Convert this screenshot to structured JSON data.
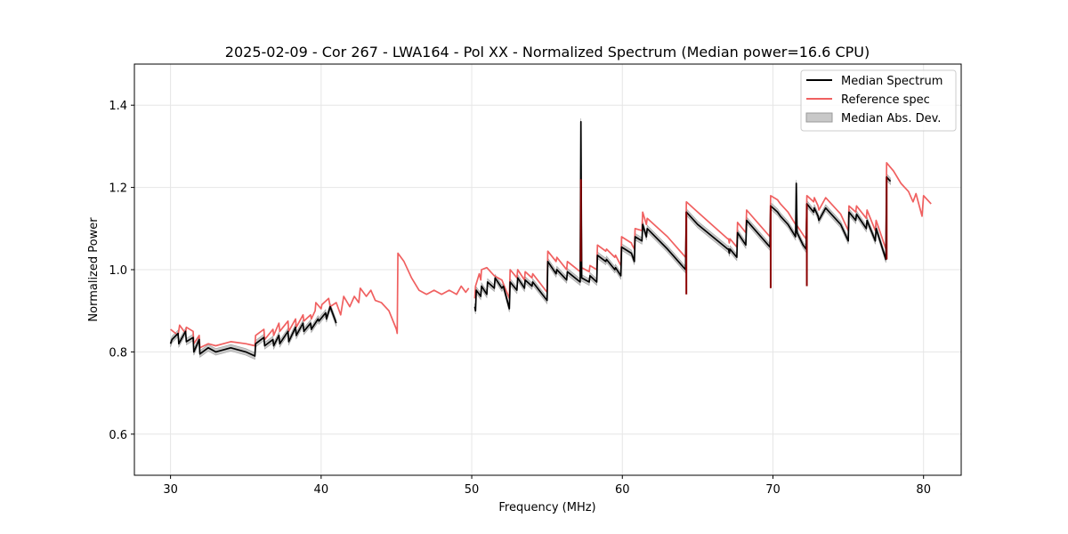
{
  "chart_data": {
    "type": "line",
    "title": "2025-02-09 - Cor 267 - LWA164 - Pol XX - Normalized Spectrum (Median power=16.6 CPU)",
    "xlabel": "Frequency (MHz)",
    "ylabel": "Normalized Power",
    "xlim": [
      27.6,
      82.5
    ],
    "ylim": [
      0.5,
      1.5
    ],
    "xticks": [
      30,
      40,
      50,
      60,
      70,
      80
    ],
    "yticks": [
      0.6,
      0.8,
      1.0,
      1.2,
      1.4
    ],
    "grid": true,
    "legend_position": "top-right",
    "legend": [
      "Median Spectrum",
      "Reference spec",
      "Median Abs. Dev."
    ],
    "colors": {
      "median": "#000000",
      "reference": "#f06060",
      "mad": "#c8c8c8",
      "overlap": "#8b0000",
      "grid": "#e6e6e6"
    },
    "series": [
      {
        "name": "Median Spectrum",
        "segments": [
          [
            [
              30.0,
              0.82
            ],
            [
              30.1,
              0.83
            ],
            [
              30.5,
              0.845
            ],
            [
              30.55,
              0.82
            ],
            [
              31.0,
              0.85
            ],
            [
              31.05,
              0.825
            ],
            [
              31.5,
              0.835
            ],
            [
              31.55,
              0.8
            ],
            [
              31.9,
              0.83
            ],
            [
              31.95,
              0.795
            ],
            [
              32.5,
              0.81
            ],
            [
              33.0,
              0.8
            ],
            [
              34.0,
              0.81
            ],
            [
              35.0,
              0.8
            ],
            [
              35.6,
              0.79
            ],
            [
              35.65,
              0.82
            ],
            [
              36.2,
              0.835
            ],
            [
              36.25,
              0.815
            ],
            [
              36.8,
              0.83
            ],
            [
              36.85,
              0.815
            ],
            [
              37.2,
              0.84
            ],
            [
              37.25,
              0.82
            ],
            [
              37.8,
              0.85
            ],
            [
              37.85,
              0.825
            ],
            [
              38.3,
              0.86
            ],
            [
              38.35,
              0.84
            ],
            [
              38.8,
              0.87
            ],
            [
              38.85,
              0.85
            ],
            [
              39.3,
              0.87
            ],
            [
              39.35,
              0.855
            ],
            [
              39.8,
              0.88
            ],
            [
              39.85,
              0.875
            ],
            [
              40.3,
              0.895
            ],
            [
              40.35,
              0.88
            ],
            [
              40.6,
              0.91
            ],
            [
              41.0,
              0.87
            ]
          ],
          [
            [
              50.2,
              0.91
            ],
            [
              50.25,
              0.9
            ],
            [
              50.3,
              0.95
            ],
            [
              50.6,
              0.935
            ],
            [
              50.65,
              0.96
            ],
            [
              51.0,
              0.94
            ],
            [
              51.05,
              0.97
            ],
            [
              51.5,
              0.955
            ],
            [
              51.55,
              0.98
            ],
            [
              52.0,
              0.955
            ],
            [
              52.1,
              0.96
            ],
            [
              52.5,
              0.905
            ],
            [
              52.55,
              0.97
            ],
            [
              53.0,
              0.95
            ],
            [
              53.05,
              0.98
            ],
            [
              53.5,
              0.955
            ],
            [
              53.55,
              0.975
            ],
            [
              54.0,
              0.96
            ],
            [
              54.05,
              0.97
            ],
            [
              55.0,
              0.925
            ],
            [
              55.05,
              1.02
            ],
            [
              55.6,
              0.99
            ],
            [
              55.65,
              1.0
            ],
            [
              56.3,
              0.975
            ],
            [
              56.35,
              0.995
            ],
            [
              57.2,
              0.97
            ],
            [
              57.25,
              1.36
            ],
            [
              57.3,
              0.98
            ],
            [
              57.8,
              0.97
            ],
            [
              57.85,
              0.985
            ],
            [
              58.3,
              0.97
            ],
            [
              58.35,
              1.035
            ],
            [
              58.9,
              1.02
            ],
            [
              58.95,
              1.025
            ],
            [
              59.5,
              1.0
            ],
            [
              59.55,
              1.005
            ],
            [
              59.9,
              0.985
            ],
            [
              59.95,
              1.055
            ],
            [
              60.6,
              1.04
            ],
            [
              60.65,
              1.035
            ],
            [
              60.8,
              1.02
            ],
            [
              60.85,
              1.08
            ],
            [
              61.3,
              1.07
            ],
            [
              61.35,
              1.11
            ],
            [
              61.6,
              1.08
            ],
            [
              61.65,
              1.1
            ],
            [
              63.0,
              1.05
            ],
            [
              64.2,
              1.0
            ],
            [
              64.25,
              1.14
            ],
            [
              65.0,
              1.11
            ],
            [
              67.0,
              1.05
            ],
            [
              67.05,
              1.05
            ],
            [
              67.1,
              1.04
            ],
            [
              67.15,
              1.05
            ],
            [
              67.6,
              1.03
            ],
            [
              67.65,
              1.09
            ],
            [
              68.2,
              1.06
            ],
            [
              68.25,
              1.12
            ],
            [
              69.8,
              1.055
            ],
            [
              69.85,
              1.155
            ],
            [
              70.3,
              1.14
            ],
            [
              70.5,
              1.13
            ],
            [
              71.0,
              1.11
            ],
            [
              71.5,
              1.08
            ],
            [
              71.55,
              1.21
            ],
            [
              71.6,
              1.09
            ],
            [
              72.0,
              1.06
            ],
            [
              72.2,
              1.05
            ],
            [
              72.25,
              1.16
            ],
            [
              72.7,
              1.14
            ],
            [
              72.75,
              1.15
            ],
            [
              73.0,
              1.13
            ],
            [
              73.05,
              1.12
            ],
            [
              73.5,
              1.15
            ],
            [
              74.5,
              1.11
            ],
            [
              75.0,
              1.07
            ],
            [
              75.05,
              1.14
            ],
            [
              75.5,
              1.12
            ],
            [
              75.55,
              1.135
            ],
            [
              76.2,
              1.1
            ],
            [
              76.25,
              1.12
            ],
            [
              76.8,
              1.07
            ],
            [
              76.85,
              1.1
            ],
            [
              77.5,
              1.025
            ],
            [
              77.55,
              1.225
            ],
            [
              77.8,
              1.215
            ]
          ]
        ]
      },
      {
        "name": "Reference spec",
        "segments": [
          [
            [
              30.0,
              0.855
            ],
            [
              30.5,
              0.84
            ],
            [
              30.6,
              0.865
            ],
            [
              31.0,
              0.845
            ],
            [
              31.05,
              0.86
            ],
            [
              31.5,
              0.85
            ],
            [
              31.55,
              0.82
            ],
            [
              31.9,
              0.84
            ],
            [
              31.95,
              0.81
            ],
            [
              32.5,
              0.82
            ],
            [
              33.0,
              0.815
            ],
            [
              34.0,
              0.825
            ],
            [
              35.0,
              0.82
            ],
            [
              35.6,
              0.815
            ],
            [
              35.65,
              0.84
            ],
            [
              36.2,
              0.855
            ],
            [
              36.25,
              0.83
            ],
            [
              36.8,
              0.855
            ],
            [
              36.85,
              0.84
            ],
            [
              37.2,
              0.87
            ],
            [
              37.25,
              0.85
            ],
            [
              37.8,
              0.875
            ],
            [
              37.85,
              0.85
            ],
            [
              38.3,
              0.88
            ],
            [
              38.35,
              0.86
            ],
            [
              38.8,
              0.89
            ],
            [
              38.85,
              0.875
            ],
            [
              39.3,
              0.89
            ],
            [
              39.35,
              0.88
            ],
            [
              39.6,
              0.9
            ],
            [
              39.65,
              0.92
            ],
            [
              40.0,
              0.905
            ],
            [
              40.05,
              0.915
            ],
            [
              40.5,
              0.93
            ],
            [
              40.6,
              0.91
            ],
            [
              41.0,
              0.92
            ],
            [
              41.3,
              0.89
            ],
            [
              41.5,
              0.935
            ],
            [
              41.9,
              0.91
            ],
            [
              42.2,
              0.935
            ],
            [
              42.5,
              0.92
            ],
            [
              42.6,
              0.955
            ],
            [
              43.0,
              0.935
            ],
            [
              43.3,
              0.95
            ],
            [
              43.6,
              0.925
            ],
            [
              44.0,
              0.92
            ],
            [
              44.5,
              0.9
            ],
            [
              45.0,
              0.855
            ],
            [
              45.05,
              0.845
            ],
            [
              45.1,
              1.04
            ],
            [
              45.5,
              1.02
            ],
            [
              46.0,
              0.98
            ],
            [
              46.5,
              0.95
            ],
            [
              47.0,
              0.94
            ],
            [
              47.5,
              0.95
            ],
            [
              48.0,
              0.94
            ],
            [
              48.5,
              0.95
            ],
            [
              49.0,
              0.94
            ],
            [
              49.3,
              0.96
            ],
            [
              49.6,
              0.945
            ],
            [
              49.8,
              0.955
            ]
          ],
          [
            [
              50.2,
              0.93
            ],
            [
              50.25,
              0.96
            ],
            [
              50.5,
              0.99
            ],
            [
              50.6,
              0.975
            ],
            [
              50.65,
              1.0
            ],
            [
              51.0,
              1.005
            ],
            [
              51.5,
              0.985
            ],
            [
              52.0,
              0.975
            ],
            [
              52.5,
              0.93
            ],
            [
              52.55,
              1.0
            ],
            [
              53.0,
              0.98
            ],
            [
              53.05,
              1.0
            ],
            [
              53.5,
              0.975
            ],
            [
              53.55,
              0.995
            ],
            [
              54.0,
              0.98
            ],
            [
              54.05,
              0.99
            ],
            [
              55.0,
              0.945
            ],
            [
              55.05,
              1.045
            ],
            [
              55.6,
              1.02
            ],
            [
              55.65,
              1.03
            ],
            [
              56.3,
              1.0
            ],
            [
              56.35,
              1.02
            ],
            [
              57.2,
              0.995
            ],
            [
              57.25,
              1.22
            ],
            [
              57.3,
              1.005
            ],
            [
              57.8,
              0.995
            ],
            [
              57.85,
              1.01
            ],
            [
              58.3,
              1.0
            ],
            [
              58.35,
              1.06
            ],
            [
              58.9,
              1.045
            ],
            [
              58.95,
              1.05
            ],
            [
              59.5,
              1.03
            ],
            [
              59.55,
              1.035
            ],
            [
              59.9,
              1.01
            ],
            [
              59.95,
              1.08
            ],
            [
              60.6,
              1.065
            ],
            [
              60.65,
              1.06
            ],
            [
              60.8,
              1.05
            ],
            [
              60.85,
              1.1
            ],
            [
              61.3,
              1.095
            ],
            [
              61.35,
              1.14
            ],
            [
              61.6,
              1.11
            ],
            [
              61.65,
              1.125
            ],
            [
              63.0,
              1.08
            ],
            [
              64.2,
              1.03
            ],
            [
              64.25,
              1.165
            ],
            [
              65.0,
              1.14
            ],
            [
              67.0,
              1.075
            ],
            [
              67.05,
              1.075
            ],
            [
              67.1,
              1.065
            ],
            [
              67.15,
              1.075
            ],
            [
              67.6,
              1.055
            ],
            [
              67.65,
              1.115
            ],
            [
              68.2,
              1.09
            ],
            [
              68.25,
              1.145
            ],
            [
              69.8,
              1.08
            ],
            [
              69.85,
              1.18
            ],
            [
              70.3,
              1.17
            ],
            [
              70.5,
              1.16
            ],
            [
              71.0,
              1.14
            ],
            [
              71.5,
              1.11
            ],
            [
              71.55,
              1.11
            ],
            [
              72.0,
              1.085
            ],
            [
              72.2,
              1.075
            ],
            [
              72.25,
              1.18
            ],
            [
              72.7,
              1.165
            ],
            [
              72.75,
              1.175
            ],
            [
              73.0,
              1.155
            ],
            [
              73.05,
              1.145
            ],
            [
              73.5,
              1.175
            ],
            [
              74.5,
              1.135
            ],
            [
              75.0,
              1.095
            ],
            [
              75.05,
              1.155
            ],
            [
              75.5,
              1.14
            ],
            [
              75.55,
              1.155
            ],
            [
              76.2,
              1.125
            ],
            [
              76.25,
              1.145
            ],
            [
              76.8,
              1.095
            ],
            [
              76.85,
              1.12
            ],
            [
              77.5,
              1.05
            ],
            [
              77.55,
              1.26
            ],
            [
              78.0,
              1.24
            ],
            [
              78.5,
              1.21
            ],
            [
              79.0,
              1.19
            ],
            [
              79.3,
              1.165
            ],
            [
              79.5,
              1.185
            ],
            [
              79.9,
              1.13
            ],
            [
              80.0,
              1.18
            ],
            [
              80.5,
              1.16
            ]
          ]
        ]
      },
      {
        "name": "Median Abs. Dev.",
        "band_halfwidth": 0.008
      }
    ]
  }
}
